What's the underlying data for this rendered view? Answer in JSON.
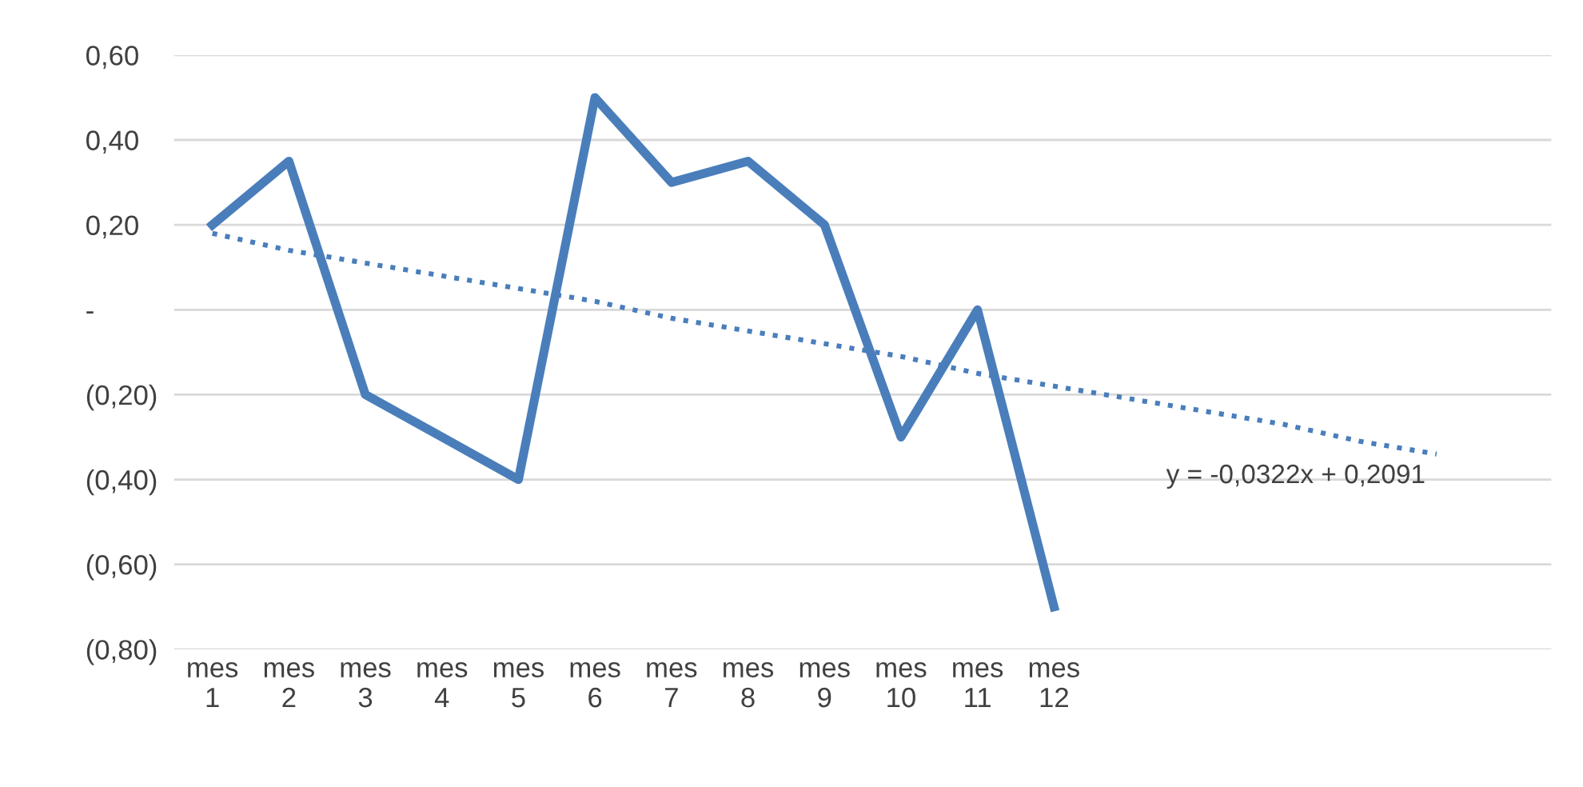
{
  "chart_data": {
    "type": "line",
    "categories": [
      "mes\n1",
      "mes\n2",
      "mes\n3",
      "mes\n4",
      "mes\n5",
      "mes\n6",
      "mes\n7",
      "mes\n8",
      "mes\n9",
      "mes\n10",
      "mes\n11",
      "mes\n12",
      null,
      null,
      null,
      null,
      null,
      null
    ],
    "ylim": [
      -0.8,
      0.6
    ],
    "yticks": [
      {
        "value": 0.6,
        "label": "0,60"
      },
      {
        "value": 0.4,
        "label": "0,40"
      },
      {
        "value": 0.2,
        "label": "0,20"
      },
      {
        "value": 0,
        "label": "-"
      },
      {
        "value": -0.2,
        "label": "(0,20)"
      },
      {
        "value": -0.4,
        "label": "(0,40)"
      },
      {
        "value": -0.6,
        "label": "(0,60)"
      },
      {
        "value": -0.8,
        "label": "(0,80)"
      }
    ],
    "grid": "y",
    "series": [
      {
        "color": "#4a7ebb",
        "values": [
          0.2,
          0.35,
          -0.2,
          -0.3,
          -0.4,
          0.5,
          0.3,
          0.35,
          0.2,
          -0.3,
          0.0,
          -0.7,
          null,
          null,
          null,
          null,
          null,
          null
        ]
      },
      {
        "type": "line",
        "line_style": "dotted",
        "color": "#4a7ebb",
        "values": [
          0.18,
          0.14,
          0.11,
          0.08,
          0.05,
          0.02,
          -0.02,
          -0.05,
          -0.08,
          -0.11,
          -0.15,
          -0.18,
          -0.21,
          -0.24,
          -0.27,
          -0.31,
          -0.34,
          null
        ]
      }
    ],
    "annotations": [
      "y = -0,0322x + 0,2091"
    ]
  }
}
